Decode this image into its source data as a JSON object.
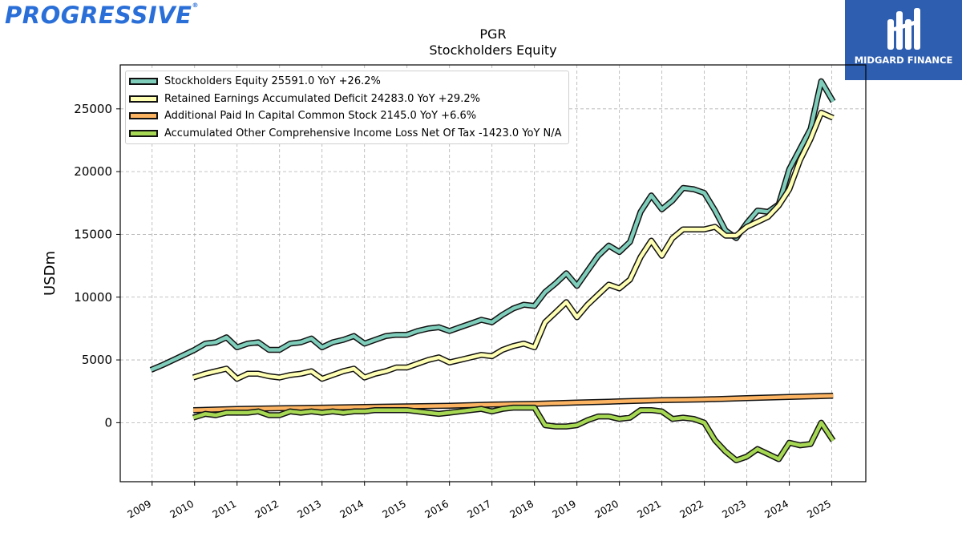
{
  "logos": {
    "left_text": "PROGRESSIVE",
    "left_mark": "®",
    "right_text": "MIDGARD FINANCE"
  },
  "colors": {
    "equity": "#7fcdbb",
    "retained": "#ffffb3",
    "apic": "#fdb462",
    "aoci": "#a6d854",
    "outline": "#111111",
    "grid": "#b0b0b0"
  },
  "chart_data": {
    "type": "line",
    "title": "PGR",
    "subtitle": "Stockholders  Equity",
    "ylabel": "USDm",
    "xlabel": "",
    "ylim": [
      -4700,
      28500
    ],
    "xlim": [
      2008.25,
      2025.8
    ],
    "yticks": [
      0,
      5000,
      10000,
      15000,
      20000,
      25000
    ],
    "xticks": [
      2009,
      2010,
      2011,
      2012,
      2013,
      2014,
      2015,
      2016,
      2017,
      2018,
      2019,
      2020,
      2021,
      2022,
      2023,
      2024,
      2025
    ],
    "grid": true,
    "legend_position": "top-left",
    "series": [
      {
        "name": "Stockholders Equity  25591.0 YoY +26.2%",
        "color_key": "equity",
        "points": [
          [
            2008.97,
            4200
          ],
          [
            2009.25,
            4600
          ],
          [
            2009.5,
            5000
          ],
          [
            2009.75,
            5400
          ],
          [
            2010.0,
            5800
          ],
          [
            2010.25,
            6300
          ],
          [
            2010.5,
            6400
          ],
          [
            2010.75,
            6800
          ],
          [
            2011.0,
            6000
          ],
          [
            2011.25,
            6300
          ],
          [
            2011.5,
            6400
          ],
          [
            2011.75,
            5800
          ],
          [
            2012.0,
            5800
          ],
          [
            2012.25,
            6300
          ],
          [
            2012.5,
            6400
          ],
          [
            2012.75,
            6700
          ],
          [
            2013.0,
            6000
          ],
          [
            2013.25,
            6400
          ],
          [
            2013.5,
            6600
          ],
          [
            2013.75,
            6900
          ],
          [
            2014.0,
            6300
          ],
          [
            2014.25,
            6600
          ],
          [
            2014.5,
            6900
          ],
          [
            2014.75,
            7000
          ],
          [
            2015.0,
            7000
          ],
          [
            2015.25,
            7300
          ],
          [
            2015.5,
            7500
          ],
          [
            2015.75,
            7600
          ],
          [
            2016.0,
            7300
          ],
          [
            2016.25,
            7600
          ],
          [
            2016.5,
            7900
          ],
          [
            2016.75,
            8200
          ],
          [
            2017.0,
            8000
          ],
          [
            2017.25,
            8600
          ],
          [
            2017.5,
            9100
          ],
          [
            2017.75,
            9400
          ],
          [
            2018.0,
            9300
          ],
          [
            2018.25,
            10400
          ],
          [
            2018.5,
            11100
          ],
          [
            2018.75,
            11900
          ],
          [
            2019.0,
            10900
          ],
          [
            2019.25,
            12100
          ],
          [
            2019.5,
            13300
          ],
          [
            2019.75,
            14100
          ],
          [
            2020.0,
            13600
          ],
          [
            2020.25,
            14400
          ],
          [
            2020.5,
            16800
          ],
          [
            2020.75,
            18100
          ],
          [
            2021.0,
            17000
          ],
          [
            2021.25,
            17700
          ],
          [
            2021.5,
            18700
          ],
          [
            2021.75,
            18600
          ],
          [
            2022.0,
            18300
          ],
          [
            2022.25,
            16900
          ],
          [
            2022.5,
            15300
          ],
          [
            2022.75,
            14700
          ],
          [
            2023.0,
            15900
          ],
          [
            2023.25,
            16900
          ],
          [
            2023.5,
            16800
          ],
          [
            2023.75,
            17400
          ],
          [
            2024.0,
            20200
          ],
          [
            2024.25,
            21800
          ],
          [
            2024.5,
            23400
          ],
          [
            2024.75,
            27200
          ],
          [
            2025.03,
            25591
          ]
        ]
      },
      {
        "name": "Retained Earnings Accumulated Deficit  24283.0 YoY +29.2%",
        "color_key": "retained",
        "points": [
          [
            2009.97,
            3600
          ],
          [
            2010.25,
            3900
          ],
          [
            2010.5,
            4100
          ],
          [
            2010.75,
            4300
          ],
          [
            2011.0,
            3500
          ],
          [
            2011.25,
            3900
          ],
          [
            2011.5,
            3900
          ],
          [
            2011.75,
            3700
          ],
          [
            2012.0,
            3600
          ],
          [
            2012.25,
            3800
          ],
          [
            2012.5,
            3900
          ],
          [
            2012.75,
            4100
          ],
          [
            2013.0,
            3500
          ],
          [
            2013.25,
            3800
          ],
          [
            2013.5,
            4100
          ],
          [
            2013.75,
            4300
          ],
          [
            2014.0,
            3600
          ],
          [
            2014.25,
            3900
          ],
          [
            2014.5,
            4100
          ],
          [
            2014.75,
            4400
          ],
          [
            2015.0,
            4400
          ],
          [
            2015.25,
            4700
          ],
          [
            2015.5,
            5000
          ],
          [
            2015.75,
            5200
          ],
          [
            2016.0,
            4800
          ],
          [
            2016.25,
            5000
          ],
          [
            2016.5,
            5200
          ],
          [
            2016.75,
            5400
          ],
          [
            2017.0,
            5300
          ],
          [
            2017.25,
            5800
          ],
          [
            2017.5,
            6100
          ],
          [
            2017.75,
            6300
          ],
          [
            2018.0,
            6000
          ],
          [
            2018.25,
            8000
          ],
          [
            2018.5,
            8800
          ],
          [
            2018.75,
            9600
          ],
          [
            2019.0,
            8400
          ],
          [
            2019.25,
            9400
          ],
          [
            2019.5,
            10200
          ],
          [
            2019.75,
            11000
          ],
          [
            2020.0,
            10700
          ],
          [
            2020.25,
            11400
          ],
          [
            2020.5,
            13200
          ],
          [
            2020.75,
            14500
          ],
          [
            2021.0,
            13300
          ],
          [
            2021.25,
            14700
          ],
          [
            2021.5,
            15400
          ],
          [
            2021.75,
            15400
          ],
          [
            2022.0,
            15400
          ],
          [
            2022.25,
            15600
          ],
          [
            2022.5,
            14900
          ],
          [
            2022.75,
            14900
          ],
          [
            2023.0,
            15600
          ],
          [
            2023.25,
            16000
          ],
          [
            2023.5,
            16400
          ],
          [
            2023.75,
            17300
          ],
          [
            2024.0,
            18600
          ],
          [
            2024.25,
            20900
          ],
          [
            2024.5,
            22600
          ],
          [
            2024.75,
            24700
          ],
          [
            2025.03,
            24283
          ]
        ]
      },
      {
        "name": "Additional Paid In Capital Common Stock  2145.0 YoY +6.6%",
        "color_key": "apic",
        "points": [
          [
            2009.97,
            1000
          ],
          [
            2011.0,
            1100
          ],
          [
            2012.0,
            1150
          ],
          [
            2013.0,
            1200
          ],
          [
            2014.0,
            1250
          ],
          [
            2015.0,
            1300
          ],
          [
            2016.0,
            1350
          ],
          [
            2017.0,
            1450
          ],
          [
            2018.0,
            1500
          ],
          [
            2019.0,
            1600
          ],
          [
            2020.0,
            1700
          ],
          [
            2021.0,
            1800
          ],
          [
            2022.0,
            1850
          ],
          [
            2023.0,
            1950
          ],
          [
            2024.0,
            2050
          ],
          [
            2025.03,
            2145
          ]
        ]
      },
      {
        "name": "Accumulated Other Comprehensive Income Loss Net Of Tax  -1423.0 YoY N/A",
        "color_key": "aoci",
        "points": [
          [
            2009.97,
            400
          ],
          [
            2010.25,
            700
          ],
          [
            2010.5,
            600
          ],
          [
            2010.75,
            800
          ],
          [
            2011.0,
            800
          ],
          [
            2011.25,
            800
          ],
          [
            2011.5,
            900
          ],
          [
            2011.75,
            600
          ],
          [
            2012.0,
            600
          ],
          [
            2012.25,
            900
          ],
          [
            2012.5,
            800
          ],
          [
            2012.75,
            900
          ],
          [
            2013.0,
            800
          ],
          [
            2013.25,
            900
          ],
          [
            2013.5,
            800
          ],
          [
            2013.75,
            900
          ],
          [
            2014.0,
            900
          ],
          [
            2014.25,
            1000
          ],
          [
            2014.5,
            1000
          ],
          [
            2014.75,
            1000
          ],
          [
            2015.0,
            1000
          ],
          [
            2015.25,
            900
          ],
          [
            2015.5,
            800
          ],
          [
            2015.75,
            700
          ],
          [
            2016.0,
            800
          ],
          [
            2016.25,
            900
          ],
          [
            2016.5,
            1000
          ],
          [
            2016.75,
            1100
          ],
          [
            2017.0,
            900
          ],
          [
            2017.25,
            1100
          ],
          [
            2017.5,
            1200
          ],
          [
            2017.75,
            1200
          ],
          [
            2018.0,
            1200
          ],
          [
            2018.25,
            -200
          ],
          [
            2018.5,
            -300
          ],
          [
            2018.75,
            -300
          ],
          [
            2019.0,
            -200
          ],
          [
            2019.25,
            200
          ],
          [
            2019.5,
            500
          ],
          [
            2019.75,
            500
          ],
          [
            2020.0,
            300
          ],
          [
            2020.25,
            400
          ],
          [
            2020.5,
            1000
          ],
          [
            2020.75,
            1000
          ],
          [
            2021.0,
            900
          ],
          [
            2021.25,
            300
          ],
          [
            2021.5,
            400
          ],
          [
            2021.75,
            300
          ],
          [
            2022.0,
            0
          ],
          [
            2022.25,
            -1400
          ],
          [
            2022.5,
            -2300
          ],
          [
            2022.75,
            -3000
          ],
          [
            2023.0,
            -2700
          ],
          [
            2023.25,
            -2100
          ],
          [
            2023.5,
            -2500
          ],
          [
            2023.75,
            -2900
          ],
          [
            2024.0,
            -1600
          ],
          [
            2024.25,
            -1800
          ],
          [
            2024.5,
            -1700
          ],
          [
            2024.75,
            0
          ],
          [
            2025.03,
            -1423
          ]
        ]
      }
    ]
  }
}
